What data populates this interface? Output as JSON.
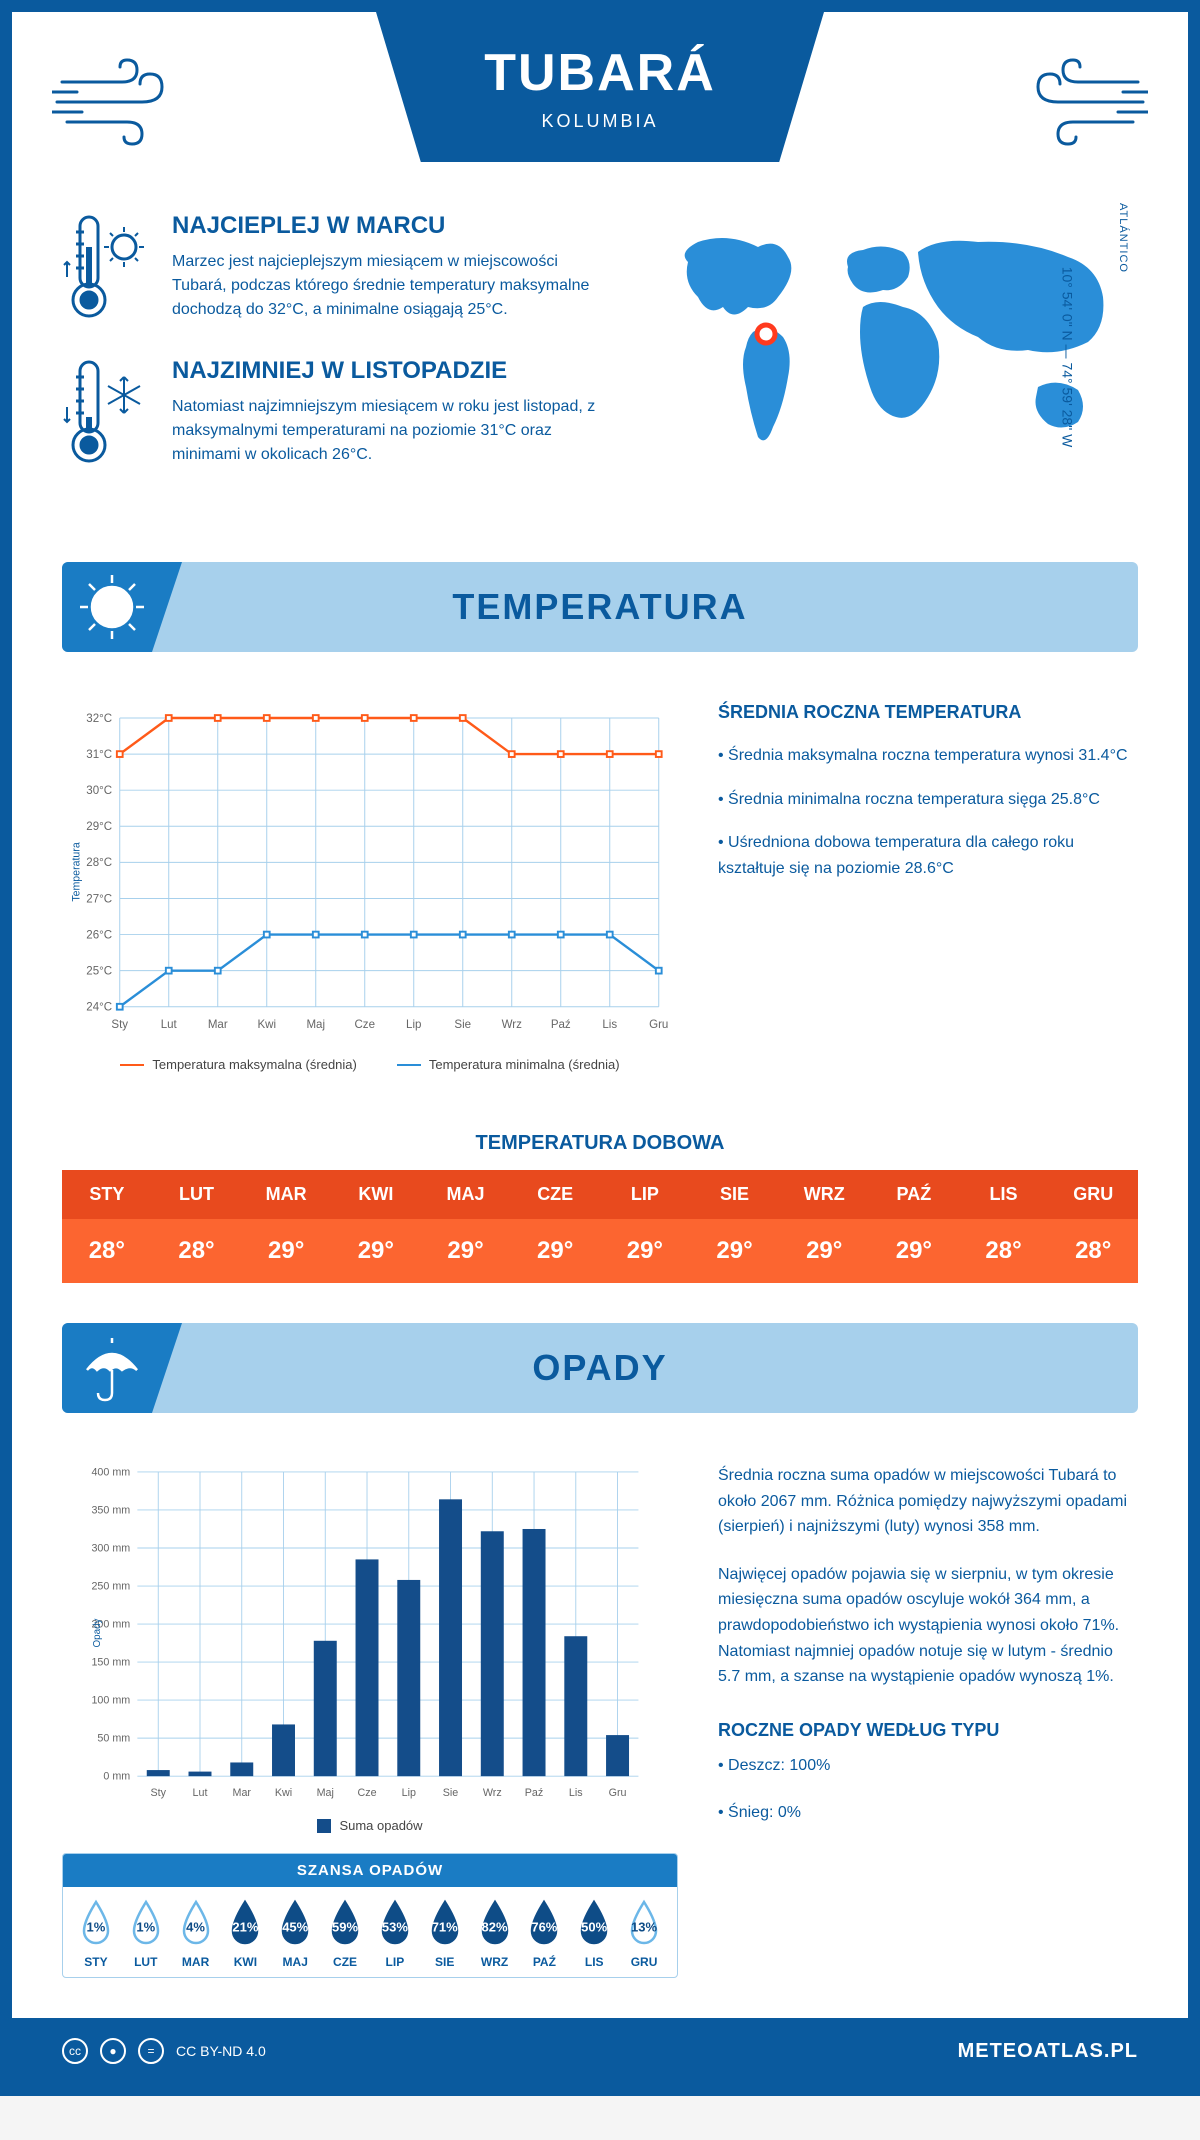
{
  "header": {
    "location": "TUBARÁ",
    "country": "KOLUMBIA"
  },
  "coords": "10° 54' 0\" N — 74° 59' 28\" W",
  "region": "ATLÁNTICO",
  "warmest": {
    "title": "NAJCIEPLEJ W MARCU",
    "text": "Marzec jest najcieplejszym miesiącem w miejscowości Tubará, podczas którego średnie temperatury maksymalne dochodzą do 32°C, a minimalne osiągają 25°C."
  },
  "coldest": {
    "title": "NAJZIMNIEJ W LISTOPADZIE",
    "text": "Natomiast najzimniejszym miesiącem w roku jest listopad, z maksymalnymi temperaturami na poziomie 31°C oraz minimami w okolicach 26°C."
  },
  "temp_section_title": "TEMPERATURA",
  "temp_side": {
    "heading": "ŚREDNIA ROCZNA TEMPERATURA",
    "p1": "• Średnia maksymalna roczna temperatura wynosi 31.4°C",
    "p2": "• Średnia minimalna roczna temperatura sięga 25.8°C",
    "p3": "• Uśredniona dobowa temperatura dla całego roku kształtuje się na poziomie 28.6°C"
  },
  "temp_chart": {
    "type": "line",
    "months": [
      "Sty",
      "Lut",
      "Mar",
      "Kwi",
      "Maj",
      "Cze",
      "Lip",
      "Sie",
      "Wrz",
      "Paź",
      "Lis",
      "Gru"
    ],
    "max_series": [
      31,
      32,
      32,
      32,
      32,
      32,
      32,
      32,
      31,
      31,
      31,
      31
    ],
    "min_series": [
      24,
      25,
      25,
      26,
      26,
      26,
      26,
      26,
      26,
      26,
      26,
      25
    ],
    "ylim": [
      24,
      32
    ],
    "ytick_step": 1,
    "max_color": "#ff5a19",
    "min_color": "#2a8ed8",
    "grid_color": "#a7d0ec",
    "background_color": "#ffffff",
    "ylabel": "Temperatura",
    "legend_max": "Temperatura maksymalna (średnia)",
    "legend_min": "Temperatura minimalna (średnia)"
  },
  "daily": {
    "title": "TEMPERATURA DOBOWA",
    "months": [
      "STY",
      "LUT",
      "MAR",
      "KWI",
      "MAJ",
      "CZE",
      "LIP",
      "SIE",
      "WRZ",
      "PAŹ",
      "LIS",
      "GRU"
    ],
    "values": [
      "28°",
      "28°",
      "29°",
      "29°",
      "29°",
      "29°",
      "29°",
      "29°",
      "29°",
      "29°",
      "28°",
      "28°"
    ],
    "header_color": "#e84a1e",
    "body_color": "#fc6530"
  },
  "precip_section_title": "OPADY",
  "precip_side": {
    "p1": "Średnia roczna suma opadów w miejscowości Tubará to około 2067 mm. Różnica pomiędzy najwyższymi opadami (sierpień) i najniższymi (luty) wynosi 358 mm.",
    "p2": "Najwięcej opadów pojawia się w sierpniu, w tym okresie miesięczna suma opadów oscyluje wokół 364 mm, a prawdopodobieństwo ich wystąpienia wynosi około 71%. Natomiast najmniej opadów notuje się w lutym - średnio 5.7 mm, a szanse na wystąpienie opadów wynoszą 1%.",
    "heading": "ROCZNE OPADY WEDŁUG TYPU",
    "rain": "• Deszcz: 100%",
    "snow": "• Śnieg: 0%"
  },
  "precip_chart": {
    "type": "bar",
    "months": [
      "Sty",
      "Lut",
      "Mar",
      "Kwi",
      "Maj",
      "Cze",
      "Lip",
      "Sie",
      "Wrz",
      "Paź",
      "Lis",
      "Gru"
    ],
    "values": [
      8,
      6,
      18,
      68,
      178,
      285,
      258,
      364,
      322,
      325,
      184,
      54
    ],
    "ylim": [
      0,
      400
    ],
    "ytick_step": 50,
    "bar_color": "#144d8a",
    "grid_color": "#a7d0ec",
    "ylabel": "Opady",
    "legend": "Suma opadów"
  },
  "chance": {
    "title": "SZANSA OPADÓW",
    "months": [
      "STY",
      "LUT",
      "MAR",
      "KWI",
      "MAJ",
      "CZE",
      "LIP",
      "SIE",
      "WRZ",
      "PAŹ",
      "LIS",
      "GRU"
    ],
    "values": [
      1,
      1,
      4,
      21,
      45,
      59,
      53,
      71,
      82,
      76,
      50,
      13
    ],
    "low_color": "#6cb7e8",
    "high_color": "#0e4c87",
    "threshold": 20
  },
  "footer": {
    "license": "CC BY-ND 4.0",
    "site": "METEOATLAS.PL"
  }
}
